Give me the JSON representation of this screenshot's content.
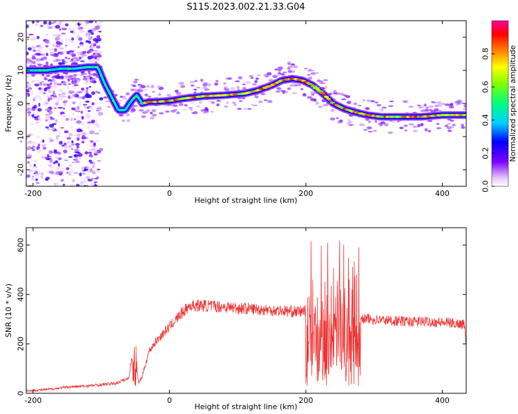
{
  "title": "S115.2023.002.21.33.G04",
  "chart_data": [
    {
      "type": "heatmap",
      "xlabel": "Height of straight line (km)",
      "ylabel": "Frequency (Hz)",
      "xlim": [
        -210,
        435
      ],
      "ylim": [
        -25,
        25
      ],
      "x_ticks": [
        -200,
        0,
        200,
        400
      ],
      "y_ticks": [
        -20,
        -10,
        0,
        10,
        20
      ],
      "colorbar": {
        "label": "Normalized spectral amplitude",
        "range": [
          0,
          1
        ],
        "ticks": [
          0.0,
          0.2,
          0.4,
          0.6,
          0.8
        ]
      },
      "ridge": {
        "name": "dominant frequency",
        "x": [
          -200,
          -180,
          -160,
          -140,
          -120,
          -105,
          -95,
          -85,
          -75,
          -65,
          -55,
          -48,
          -40,
          -30,
          -20,
          0,
          20,
          50,
          80,
          110,
          130,
          150,
          165,
          180,
          195,
          210,
          225,
          240,
          255,
          270,
          290,
          310,
          340,
          370,
          400,
          435
        ],
        "y": [
          10,
          10,
          10.5,
          10.5,
          11,
          11,
          6,
          2,
          -2,
          -2,
          1,
          2.5,
          0,
          0.5,
          0.5,
          0.8,
          1.5,
          2.2,
          2.5,
          3,
          4,
          5.5,
          7,
          7.5,
          7,
          5.5,
          3,
          0,
          -1.5,
          -2.5,
          -3.5,
          -4,
          -4,
          -4,
          -3.5,
          -3.5
        ]
      }
    },
    {
      "type": "line",
      "xlabel": "Height of straight line (km)",
      "ylabel": "SNR (10 * v/v)",
      "xlim": [
        -210,
        435
      ],
      "ylim": [
        0,
        670
      ],
      "x_ticks": [
        -200,
        0,
        200,
        400
      ],
      "y_ticks": [
        0,
        200,
        400,
        600
      ],
      "color": "#ef3232",
      "series": [
        {
          "x": [
            -210,
            -180,
            -150,
            -120,
            -100,
            -80,
            -60,
            -55,
            -52,
            -48,
            -45,
            -40,
            -35,
            -30,
            -20,
            -10,
            0,
            10,
            20,
            30,
            50,
            80,
            100,
            130,
            160,
            190,
            210,
            230,
            250,
            265,
            275,
            280,
            290,
            320,
            350,
            380,
            410,
            432,
            435
          ],
          "y": [
            10,
            15,
            25,
            30,
            35,
            40,
            60,
            150,
            240,
            100,
            40,
            70,
            120,
            170,
            210,
            240,
            270,
            300,
            330,
            355,
            355,
            350,
            345,
            340,
            335,
            330,
            340,
            350,
            330,
            340,
            320,
            300,
            300,
            295,
            290,
            290,
            285,
            280,
            200
          ],
          "envelope": [
            {
              "x_range": [
                -55,
                -48
              ],
              "y_max": 300
            },
            {
              "x_range": [
                200,
                280
              ],
              "y_min": 30,
              "y_max": 670
            }
          ]
        }
      ]
    }
  ]
}
